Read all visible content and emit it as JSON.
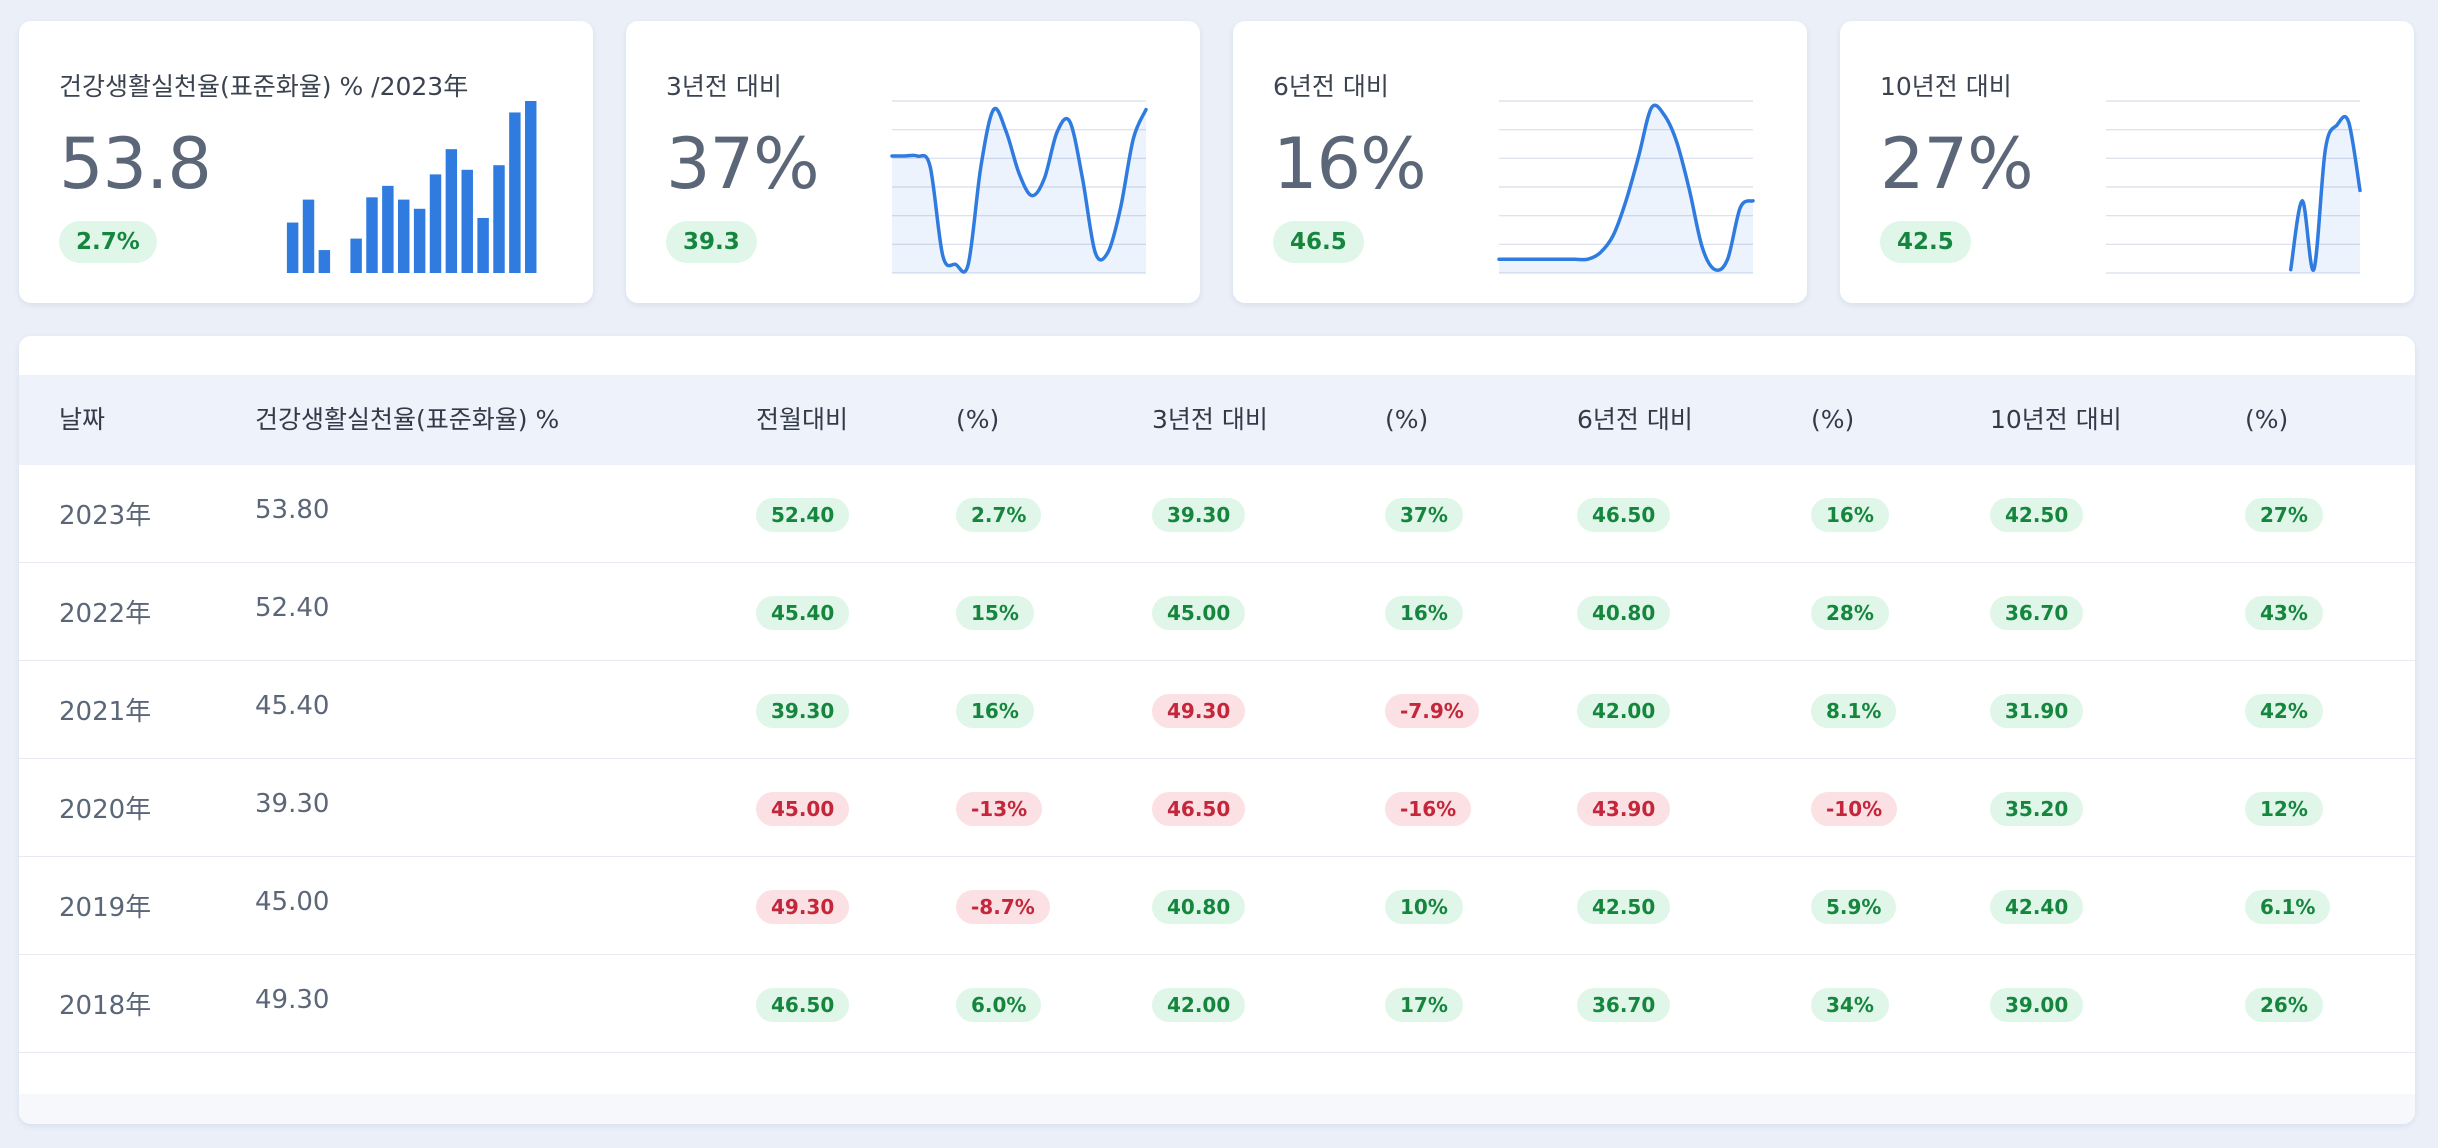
{
  "colors": {
    "accent": "#2f7be0",
    "positive_bg": "#dff6e8",
    "positive_text": "#16863f",
    "negative_bg": "#fbe0e4",
    "negative_text": "#c4263b"
  },
  "cards": [
    {
      "title": "건강생활실천율(표준화율) % /2023年",
      "value": "53.8",
      "badge": "2.7%",
      "chart_type": "bar",
      "values": [
        22,
        32,
        10,
        0,
        15,
        33,
        38,
        32,
        28,
        43,
        54,
        45,
        24,
        47,
        70,
        75
      ]
    },
    {
      "title": "3년전 대비",
      "value": "37%",
      "badge": "39.3",
      "chart_type": "line",
      "values": [
        0.68,
        0.68,
        0.68,
        0.62,
        0.1,
        0.05,
        0.05,
        0.62,
        0.95,
        0.82,
        0.58,
        0.45,
        0.55,
        0.82,
        0.88,
        0.55,
        0.12,
        0.12,
        0.38,
        0.78,
        0.95
      ]
    },
    {
      "title": "6년전 대비",
      "value": "16%",
      "badge": "46.5",
      "chart_type": "line",
      "values": [
        0.08,
        0.08,
        0.08,
        0.08,
        0.08,
        0.08,
        0.08,
        0.08,
        0.12,
        0.22,
        0.42,
        0.68,
        0.96,
        0.92,
        0.76,
        0.48,
        0.15,
        0.02,
        0.08,
        0.38,
        0.42
      ]
    },
    {
      "title": "10년전 대비",
      "value": "27%",
      "badge": "42.5",
      "chart_type": "line",
      "values": [
        null,
        null,
        null,
        null,
        null,
        null,
        null,
        null,
        null,
        null,
        null,
        null,
        null,
        null,
        null,
        null,
        0.02,
        0.42,
        0.02,
        0.72,
        0.86,
        0.88,
        0.48
      ]
    }
  ],
  "table": {
    "headers": [
      "날짜",
      "건강생활실천율(표준화율) %",
      "전월대비",
      "(%)",
      "3년전 대비",
      "(%)",
      "6년전 대비",
      "(%)",
      "10년전 대비",
      "(%)"
    ],
    "rows": [
      {
        "date": "2023年",
        "value": "53.80",
        "cells": [
          [
            "52.40",
            "pos"
          ],
          [
            "2.7%",
            "pos"
          ],
          [
            "39.30",
            "pos"
          ],
          [
            "37%",
            "pos"
          ],
          [
            "46.50",
            "pos"
          ],
          [
            "16%",
            "pos"
          ],
          [
            "42.50",
            "pos"
          ],
          [
            "27%",
            "pos"
          ]
        ]
      },
      {
        "date": "2022年",
        "value": "52.40",
        "cells": [
          [
            "45.40",
            "pos"
          ],
          [
            "15%",
            "pos"
          ],
          [
            "45.00",
            "pos"
          ],
          [
            "16%",
            "pos"
          ],
          [
            "40.80",
            "pos"
          ],
          [
            "28%",
            "pos"
          ],
          [
            "36.70",
            "pos"
          ],
          [
            "43%",
            "pos"
          ]
        ]
      },
      {
        "date": "2021年",
        "value": "45.40",
        "cells": [
          [
            "39.30",
            "pos"
          ],
          [
            "16%",
            "pos"
          ],
          [
            "49.30",
            "neg"
          ],
          [
            "-7.9%",
            "neg"
          ],
          [
            "42.00",
            "pos"
          ],
          [
            "8.1%",
            "pos"
          ],
          [
            "31.90",
            "pos"
          ],
          [
            "42%",
            "pos"
          ]
        ]
      },
      {
        "date": "2020年",
        "value": "39.30",
        "cells": [
          [
            "45.00",
            "neg"
          ],
          [
            "-13%",
            "neg"
          ],
          [
            "46.50",
            "neg"
          ],
          [
            "-16%",
            "neg"
          ],
          [
            "43.90",
            "neg"
          ],
          [
            "-10%",
            "neg"
          ],
          [
            "35.20",
            "pos"
          ],
          [
            "12%",
            "pos"
          ]
        ]
      },
      {
        "date": "2019年",
        "value": "45.00",
        "cells": [
          [
            "49.30",
            "neg"
          ],
          [
            "-8.7%",
            "neg"
          ],
          [
            "40.80",
            "pos"
          ],
          [
            "10%",
            "pos"
          ],
          [
            "42.50",
            "pos"
          ],
          [
            "5.9%",
            "pos"
          ],
          [
            "42.40",
            "pos"
          ],
          [
            "6.1%",
            "pos"
          ]
        ]
      },
      {
        "date": "2018年",
        "value": "49.30",
        "cells": [
          [
            "46.50",
            "pos"
          ],
          [
            "6.0%",
            "pos"
          ],
          [
            "42.00",
            "pos"
          ],
          [
            "17%",
            "pos"
          ],
          [
            "36.70",
            "pos"
          ],
          [
            "34%",
            "pos"
          ],
          [
            "39.00",
            "pos"
          ],
          [
            "26%",
            "pos"
          ]
        ]
      }
    ]
  }
}
